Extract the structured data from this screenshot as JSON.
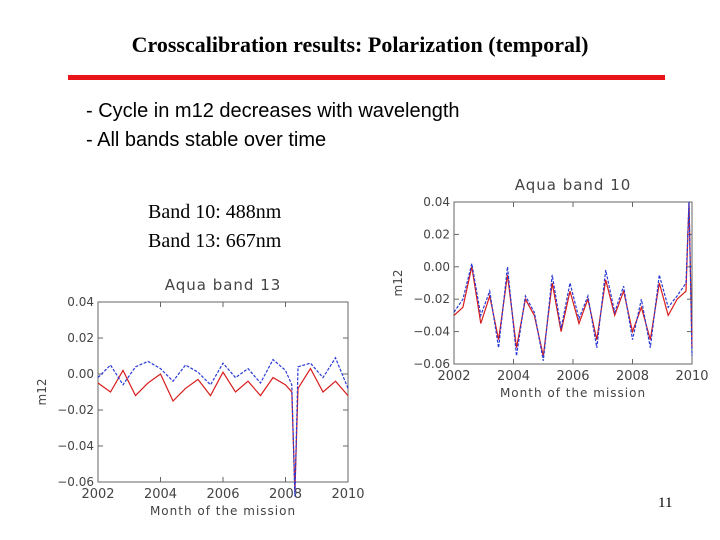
{
  "slide": {
    "title": "Crosscalibration results: Polarization (temporal)",
    "accent_color": "#e8141a",
    "bullets": [
      "- Cycle in m12 decreases with wavelength",
      "- All bands stable over time"
    ],
    "band_labels": [
      "Band 10: 488nm",
      "Band 13: 667nm"
    ],
    "page_number": "11"
  },
  "chart_data": [
    {
      "type": "line",
      "title": "Aqua band 10",
      "xlabel": "Month of the mission",
      "ylabel": "m12",
      "xlim": [
        2002,
        2010
      ],
      "ylim": [
        -0.06,
        0.04
      ],
      "xticks": [
        "2002",
        "2004",
        "2006",
        "2008",
        "2010"
      ],
      "yticks": [
        "0.04",
        "0.02",
        "0.00",
        "−0.02",
        "−0.04",
        "−0.06"
      ],
      "x": [
        2002.0,
        2002.3,
        2002.6,
        2002.9,
        2003.2,
        2003.5,
        2003.8,
        2004.1,
        2004.4,
        2004.7,
        2005.0,
        2005.3,
        2005.6,
        2005.9,
        2006.2,
        2006.5,
        2006.8,
        2007.1,
        2007.4,
        2007.7,
        2008.0,
        2008.3,
        2008.6,
        2008.9,
        2009.2,
        2009.5,
        2009.8,
        2009.9,
        2010.0
      ],
      "series": [
        {
          "name": "red",
          "color": "#d81c1c",
          "values": [
            -0.03,
            -0.025,
            0.0,
            -0.035,
            -0.018,
            -0.045,
            -0.005,
            -0.05,
            -0.02,
            -0.03,
            -0.055,
            -0.01,
            -0.04,
            -0.015,
            -0.035,
            -0.02,
            -0.045,
            -0.008,
            -0.03,
            -0.015,
            -0.04,
            -0.025,
            -0.045,
            -0.01,
            -0.03,
            -0.02,
            -0.015,
            0.04,
            -0.05
          ]
        },
        {
          "name": "blue",
          "color": "#2a3ad6",
          "values": [
            -0.028,
            -0.02,
            0.002,
            -0.03,
            -0.015,
            -0.05,
            0.0,
            -0.055,
            -0.018,
            -0.028,
            -0.058,
            -0.005,
            -0.038,
            -0.01,
            -0.032,
            -0.018,
            -0.05,
            -0.002,
            -0.028,
            -0.012,
            -0.045,
            -0.02,
            -0.05,
            -0.005,
            -0.025,
            -0.018,
            -0.01,
            0.04,
            -0.055
          ]
        }
      ]
    },
    {
      "type": "line",
      "title": "Aqua band 13",
      "xlabel": "Month of the mission",
      "ylabel": "m12",
      "xlim": [
        2002,
        2010
      ],
      "ylim": [
        -0.06,
        0.04
      ],
      "xticks": [
        "2002",
        "2004",
        "2006",
        "2008",
        "2010"
      ],
      "yticks": [
        "0.04",
        "0.02",
        "0.00",
        "−0.02",
        "−0.04",
        "−0.06"
      ],
      "x": [
        2002.0,
        2002.4,
        2002.8,
        2003.2,
        2003.6,
        2004.0,
        2004.4,
        2004.8,
        2005.2,
        2005.6,
        2006.0,
        2006.4,
        2006.8,
        2007.2,
        2007.6,
        2008.0,
        2008.2,
        2008.3,
        2008.4,
        2008.8,
        2009.2,
        2009.6,
        2010.0
      ],
      "series": [
        {
          "name": "red",
          "color": "#d81c1c",
          "values": [
            -0.005,
            -0.01,
            0.002,
            -0.012,
            -0.005,
            0.0,
            -0.015,
            -0.008,
            -0.003,
            -0.012,
            0.001,
            -0.01,
            -0.004,
            -0.012,
            -0.002,
            -0.006,
            -0.01,
            -0.065,
            -0.008,
            0.003,
            -0.01,
            -0.004,
            -0.012
          ]
        },
        {
          "name": "blue",
          "color": "#2a3ad6",
          "values": [
            -0.002,
            0.005,
            -0.006,
            0.004,
            0.007,
            0.003,
            -0.004,
            0.005,
            0.001,
            -0.006,
            0.006,
            -0.002,
            0.003,
            -0.005,
            0.008,
            0.002,
            -0.006,
            -0.068,
            0.004,
            0.006,
            -0.002,
            0.009,
            -0.008
          ]
        }
      ]
    }
  ]
}
